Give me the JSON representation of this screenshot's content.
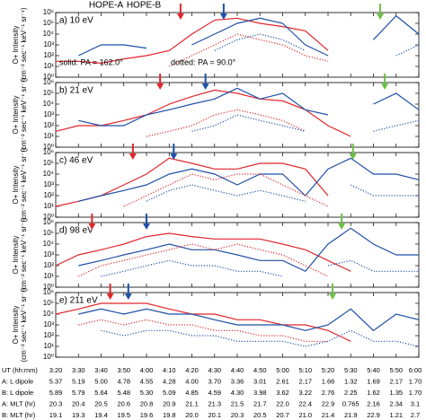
{
  "legend": [
    {
      "name": "HOPE-A",
      "color": "#e0262b"
    },
    {
      "name": "HOPE-B",
      "color": "#1f4fa8"
    }
  ],
  "annotations": [
    "solid: PA = 162.0°",
    "dotted: PA = 90.0°"
  ],
  "chart_data": [
    {
      "type": "line",
      "title": "a)  10 eV",
      "ylabel": [
        "O+ Intensity",
        "(cm⁻² sec⁻¹ keV⁻¹ sr⁻¹)"
      ],
      "yscale": "log",
      "x": [
        200,
        210,
        220,
        230,
        240,
        250,
        260,
        270,
        280,
        290,
        300,
        310,
        320,
        330,
        340,
        350,
        360
      ],
      "xlim": [
        200,
        360
      ],
      "xticks": [
        200,
        210,
        220,
        230,
        240,
        250,
        260,
        270,
        280,
        290,
        300,
        310,
        320,
        330,
        340,
        350,
        360
      ],
      "ylim": [
        1,
        1000000
      ],
      "yticks": [
        {
          "value": 1,
          "label": "10⁰"
        },
        {
          "value": 10,
          "label": "10¹"
        },
        {
          "value": 100,
          "label": "10²"
        },
        {
          "value": 1000,
          "label": "10³"
        },
        {
          "value": 10000,
          "label": "10⁴"
        },
        {
          "value": 100000,
          "label": "10⁵"
        },
        {
          "value": 1000000,
          "label": "10⁶"
        }
      ],
      "arrows": [
        {
          "x": 255,
          "color": "#e0262b"
        },
        {
          "x": 274,
          "color": "#1f4fa8"
        },
        {
          "x": 343,
          "color": "#6dbf45"
        }
      ],
      "series": [
        {
          "color": "#e0262b",
          "style": "solid",
          "values": [
            30,
            30,
            20,
            50,
            100,
            300,
            10000,
            200000,
            300000,
            100000,
            50000,
            20000,
            300,
            null,
            null,
            null,
            null
          ]
        },
        {
          "color": "#1f4fa8",
          "style": "solid",
          "values": [
            null,
            100,
            1000,
            1000,
            500,
            null,
            1000,
            10000,
            100000,
            300000,
            100000,
            1000,
            100,
            null,
            3000,
            500000,
            10000
          ]
        },
        {
          "color": "#e0262b",
          "style": "dotted",
          "values": [
            null,
            null,
            null,
            null,
            null,
            10,
            100,
            1000,
            10000,
            3000,
            1000,
            100,
            30,
            null,
            null,
            null,
            null
          ]
        },
        {
          "color": "#1f4fa8",
          "style": "dotted",
          "values": [
            null,
            null,
            null,
            null,
            null,
            null,
            null,
            300,
            3000,
            10000,
            3000,
            300,
            null,
            null,
            null,
            100,
            1000
          ]
        }
      ]
    },
    {
      "type": "line",
      "title": "b)  21 eV",
      "ylabel": [
        "O+ Intensity",
        "(cm⁻² sec⁻¹ keV⁻¹ sr⁻¹)"
      ],
      "yscale": "log",
      "x": [
        200,
        210,
        220,
        230,
        240,
        250,
        260,
        270,
        280,
        290,
        300,
        310,
        320,
        330,
        340,
        350,
        360
      ],
      "xlim": [
        200,
        360
      ],
      "xticks": [
        200,
        210,
        220,
        230,
        240,
        250,
        260,
        270,
        280,
        290,
        300,
        310,
        320,
        330,
        340,
        350,
        360
      ],
      "ylim": [
        1,
        1000000
      ],
      "yticks": [
        {
          "value": 1,
          "label": "10⁰"
        },
        {
          "value": 10,
          "label": "10¹"
        },
        {
          "value": 100,
          "label": "10²"
        },
        {
          "value": 1000,
          "label": "10³"
        },
        {
          "value": 10000,
          "label": "10⁴"
        },
        {
          "value": 100000,
          "label": "10⁵"
        },
        {
          "value": 1000000,
          "label": "10⁶"
        }
      ],
      "arrows": [
        {
          "x": 246,
          "color": "#e0262b"
        },
        {
          "x": 266,
          "color": "#1f4fa8"
        },
        {
          "x": 345,
          "color": "#6dbf45"
        }
      ],
      "series": [
        {
          "color": "#e0262b",
          "style": "solid",
          "values": [
            30,
            100,
            100,
            300,
            1000,
            10000,
            50000,
            200000,
            100000,
            30000,
            20000,
            3000,
            100,
            10,
            null,
            null,
            null
          ]
        },
        {
          "color": "#1f4fa8",
          "style": "solid",
          "values": [
            null,
            300,
            100,
            100,
            1000,
            3000,
            10000,
            30000,
            300000,
            30000,
            100000,
            3000,
            1000,
            null,
            10000,
            100000,
            3000
          ]
        },
        {
          "color": "#e0262b",
          "style": "dotted",
          "values": [
            null,
            null,
            null,
            null,
            10,
            30,
            100,
            1000,
            3000,
            1000,
            300,
            30,
            null,
            null,
            null,
            null,
            null
          ]
        },
        {
          "color": "#1f4fa8",
          "style": "dotted",
          "values": [
            null,
            null,
            null,
            null,
            null,
            null,
            30,
            100,
            1000,
            300,
            100,
            30,
            null,
            null,
            30,
            100,
            300
          ]
        }
      ]
    },
    {
      "type": "line",
      "title": "c)  46 eV",
      "ylabel": [
        "O+ Intensity",
        "(cm⁻² sec⁻¹ keV⁻¹ sr⁻¹)"
      ],
      "yscale": "log",
      "x": [
        200,
        210,
        220,
        230,
        240,
        250,
        260,
        270,
        280,
        290,
        300,
        310,
        320,
        330,
        340,
        350,
        360
      ],
      "xlim": [
        200,
        360
      ],
      "xticks": [
        200,
        210,
        220,
        230,
        240,
        250,
        260,
        270,
        280,
        290,
        300,
        310,
        320,
        330,
        340,
        350,
        360
      ],
      "ylim": [
        1,
        1000000
      ],
      "yticks": [
        {
          "value": 1,
          "label": "10⁰"
        },
        {
          "value": 10,
          "label": "10¹"
        },
        {
          "value": 100,
          "label": "10²"
        },
        {
          "value": 1000,
          "label": "10³"
        },
        {
          "value": 10000,
          "label": "10⁴"
        },
        {
          "value": 100000,
          "label": "10⁵"
        },
        {
          "value": 1000000,
          "label": "10⁶"
        }
      ],
      "arrows": [
        {
          "x": 234,
          "color": "#e0262b"
        },
        {
          "x": 252,
          "color": "#1f4fa8"
        },
        {
          "x": 331,
          "color": "#6dbf45"
        }
      ],
      "series": [
        {
          "color": "#e0262b",
          "style": "solid",
          "values": [
            10,
            30,
            100,
            1000,
            10000,
            300000,
            100000,
            30000,
            30000,
            100000,
            100000,
            30000,
            100,
            null,
            null,
            null,
            null
          ]
        },
        {
          "color": "#1f4fa8",
          "style": "solid",
          "values": [
            null,
            30,
            100,
            300,
            1000,
            10000,
            30000,
            10000,
            1000,
            10000,
            10000,
            100,
            30000,
            300000,
            10000,
            10000,
            3000
          ]
        },
        {
          "color": "#e0262b",
          "style": "dotted",
          "values": [
            null,
            null,
            null,
            10,
            100,
            1000,
            10000,
            3000,
            10000,
            10000,
            1000,
            100,
            10,
            null,
            null,
            null,
            null
          ]
        },
        {
          "color": "#1f4fa8",
          "style": "dotted",
          "values": [
            null,
            null,
            null,
            null,
            30,
            300,
            1000,
            300,
            100,
            300,
            100,
            30,
            null,
            1000,
            100,
            100,
            100
          ]
        }
      ]
    },
    {
      "type": "line",
      "title": "d)  98 eV",
      "ylabel": [
        "O+ Intensity",
        "(cm⁻² sec⁻¹ keV⁻¹ sr⁻¹)"
      ],
      "yscale": "log",
      "x": [
        200,
        210,
        220,
        230,
        240,
        250,
        260,
        270,
        280,
        290,
        300,
        310,
        320,
        330,
        340,
        350,
        360
      ],
      "xlim": [
        200,
        360
      ],
      "xticks": [
        200,
        210,
        220,
        230,
        240,
        250,
        260,
        270,
        280,
        290,
        300,
        310,
        320,
        330,
        340,
        350,
        360
      ],
      "ylim": [
        1,
        1000000
      ],
      "yticks": [
        {
          "value": 1,
          "label": "10⁰"
        },
        {
          "value": 10,
          "label": "10¹"
        },
        {
          "value": 100,
          "label": "10²"
        },
        {
          "value": 1000,
          "label": "10³"
        },
        {
          "value": 10000,
          "label": "10⁴"
        },
        {
          "value": 100000,
          "label": "10⁵"
        },
        {
          "value": 1000000,
          "label": "10⁶"
        }
      ],
      "arrows": [
        {
          "x": 216,
          "color": "#e0262b"
        },
        {
          "x": 240,
          "color": "#1f4fa8"
        },
        {
          "x": 326,
          "color": "#6dbf45"
        }
      ],
      "series": [
        {
          "color": "#e0262b",
          "style": "solid",
          "values": [
            100,
            1000,
            3000,
            10000,
            50000,
            100000,
            50000,
            30000,
            30000,
            30000,
            10000,
            3000,
            300,
            30,
            null,
            null,
            null
          ]
        },
        {
          "color": "#1f4fa8",
          "style": "solid",
          "values": [
            null,
            100,
            300,
            1000,
            3000,
            10000,
            3000,
            3000,
            1000,
            300,
            300,
            30,
            10000,
            300000,
            10000,
            1000,
            1000
          ]
        },
        {
          "color": "#e0262b",
          "style": "dotted",
          "values": [
            null,
            10,
            100,
            300,
            1000,
            3000,
            10000,
            3000,
            10000,
            3000,
            1000,
            100,
            10,
            null,
            null,
            null,
            null
          ]
        },
        {
          "color": "#1f4fa8",
          "style": "dotted",
          "values": [
            null,
            null,
            10,
            30,
            100,
            300,
            100,
            100,
            30,
            30,
            10,
            null,
            100,
            300,
            30,
            30,
            30
          ]
        }
      ]
    },
    {
      "type": "line",
      "title": "e)  211 eV",
      "ylabel": [
        "O+ Intensity",
        "(cm⁻² sec⁻¹ keV⁻¹ sr⁻¹)"
      ],
      "yscale": "log",
      "x": [
        200,
        210,
        220,
        230,
        240,
        250,
        260,
        270,
        280,
        290,
        300,
        310,
        320,
        330,
        340,
        350,
        360
      ],
      "xlim": [
        200,
        360
      ],
      "xticks": [
        200,
        210,
        220,
        230,
        240,
        250,
        260,
        270,
        280,
        290,
        300,
        310,
        320,
        330,
        340,
        350,
        360
      ],
      "ylim": [
        1,
        1000000
      ],
      "yticks": [
        {
          "value": 1,
          "label": "10⁰"
        },
        {
          "value": 10,
          "label": "10¹"
        },
        {
          "value": 100,
          "label": "10²"
        },
        {
          "value": 1000,
          "label": "10³"
        },
        {
          "value": 10000,
          "label": "10⁴"
        },
        {
          "value": 100000,
          "label": "10⁵"
        },
        {
          "value": 1000000,
          "label": "10⁶"
        }
      ],
      "arrows": [
        {
          "x": 224,
          "color": "#e0262b"
        },
        {
          "x": 232,
          "color": "#1f4fa8"
        },
        {
          "x": 322,
          "color": "#6dbf45"
        }
      ],
      "series": [
        {
          "color": "#e0262b",
          "style": "solid",
          "values": [
            10000,
            30000,
            100000,
            100000,
            100000,
            30000,
            10000,
            10000,
            3000,
            3000,
            1000,
            1000,
            300,
            30,
            null,
            null,
            null
          ]
        },
        {
          "color": "#1f4fa8",
          "style": "solid",
          "values": [
            null,
            10000,
            30000,
            10000,
            30000,
            10000,
            10000,
            3000,
            1000,
            1000,
            1000,
            300,
            1000,
            30000,
            300,
            10000,
            3000
          ]
        },
        {
          "color": "#e0262b",
          "style": "dotted",
          "values": [
            null,
            1000,
            3000,
            1000,
            3000,
            1000,
            1000,
            300,
            300,
            100,
            100,
            30,
            30,
            null,
            null,
            null,
            null
          ]
        },
        {
          "color": "#1f4fa8",
          "style": "dotted",
          "values": [
            null,
            null,
            300,
            100,
            300,
            300,
            100,
            100,
            30,
            30,
            30,
            10,
            30,
            300,
            30,
            30,
            10
          ]
        }
      ]
    }
  ],
  "ephemeris": {
    "rows": [
      {
        "label": "UT (hh:mm)",
        "color": "#000000",
        "values": [
          "3:20",
          "3:30",
          "3:40",
          "3:50",
          "4:00",
          "4:10",
          "4:20",
          "4:30",
          "4:40",
          "4:50",
          "5:00",
          "5:10",
          "5:20",
          "5:30",
          "5:40",
          "5:50",
          "6:00"
        ]
      },
      {
        "label": "A: L dipole",
        "color": "#e0262b",
        "values": [
          "5.37",
          "5.19",
          "5.00",
          "4.78",
          "4.55",
          "4.28",
          "4.00",
          "3.70",
          "3.36",
          "3.01",
          "2.61",
          "2.17",
          "1.66",
          "1.32",
          "1.69",
          "2.17",
          "1.70"
        ]
      },
      {
        "label": "B: L dipole",
        "color": "#1f4fa8",
        "values": [
          "5.89",
          "5.79",
          "5.64",
          "5.48",
          "5.30",
          "5.09",
          "4.85",
          "4.59",
          "4.30",
          "3.98",
          "3.62",
          "3.22",
          "2.76",
          "2.25",
          "1.62",
          "1.35",
          "1.70"
        ]
      },
      {
        "label": "A: MLT (hr)",
        "color": "#e0262b",
        "values": [
          "20.3",
          "20.4",
          "20.5",
          "20.6",
          "20.8",
          "20.9",
          "21.1",
          "21.3",
          "21.5",
          "21.7",
          "22.0",
          "22.4",
          "22.9",
          "0.765",
          "2.16",
          "2.34",
          "3.1"
        ]
      },
      {
        "label": "B: MLT (hr)",
        "color": "#1f4fa8",
        "values": [
          "19.1",
          "19.3",
          "19.4",
          "19.5",
          "19.6",
          "19.8",
          "20.0",
          "20.1",
          "20.3",
          "20.5",
          "20.7",
          "21.0",
          "21.4",
          "21.9",
          "22.9",
          "1.21",
          "2.7"
        ]
      }
    ]
  }
}
